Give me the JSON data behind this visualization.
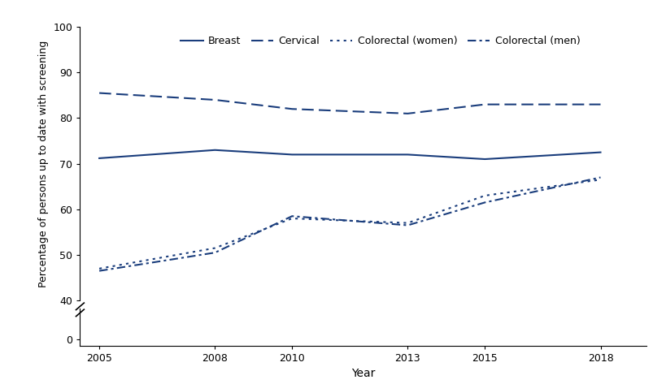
{
  "years": [
    2005,
    2008,
    2010,
    2013,
    2015,
    2018
  ],
  "breast": [
    71.2,
    73.0,
    72.0,
    72.0,
    71.0,
    72.5
  ],
  "cervical": [
    85.5,
    84.0,
    82.0,
    81.0,
    83.0,
    83.0
  ],
  "colorectal_women": [
    47.0,
    51.5,
    58.0,
    57.0,
    63.0,
    66.5
  ],
  "colorectal_men": [
    46.5,
    50.5,
    58.5,
    56.5,
    61.5,
    67.0
  ],
  "line_color": "#1a3d7c",
  "ylabel": "Percentage of persons up to date with screening",
  "xlabel": "Year",
  "yticks_upper": [
    40,
    50,
    60,
    70,
    80,
    90,
    100
  ],
  "yticks_lower": [
    0
  ],
  "xticks": [
    2005,
    2008,
    2010,
    2013,
    2015,
    2018
  ],
  "legend_labels": [
    "Breast",
    "Cervical",
    "Colorectal (women)",
    "Colorectal (men)"
  ]
}
